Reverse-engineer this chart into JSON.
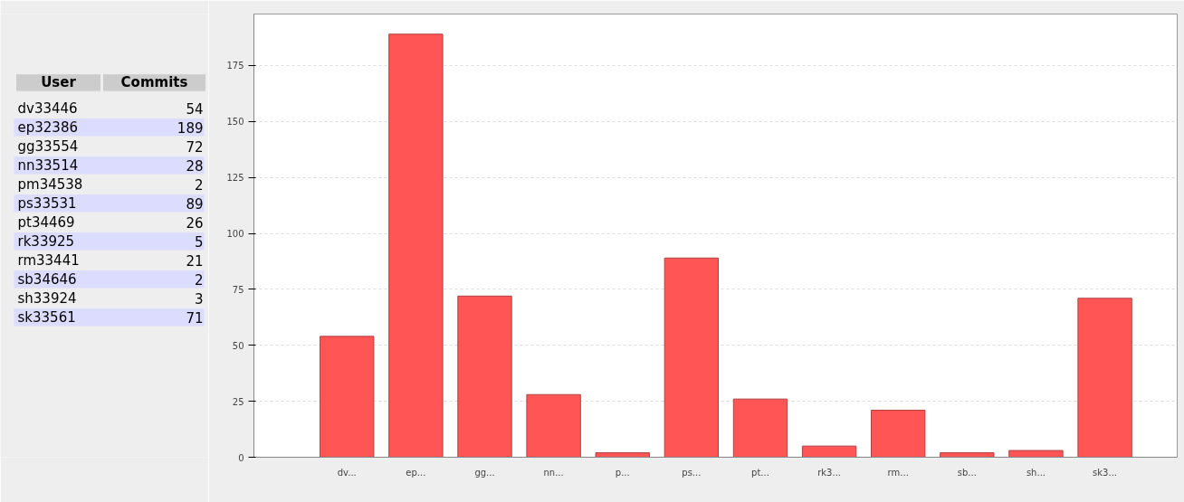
{
  "chart_data": [
    {
      "type": "other",
      "annotations": [
        "User",
        "Commits",
        "dv33446",
        "54",
        "ep32386",
        "189",
        "gg33554",
        "72",
        "nn33514",
        "28",
        "pm34538",
        "2",
        "ps33531",
        "89",
        "pt34469",
        "26",
        "rk33925",
        "5",
        "rm33441",
        "21",
        "sb34646",
        "2",
        "sh33924",
        "3",
        "sk33561",
        "71"
      ]
    },
    {
      "type": "bar",
      "categories": [
        "dv...",
        "ep...",
        "gg...",
        "nn...",
        "p...",
        "ps...",
        "pt...",
        "rk3...",
        "rm...",
        "sb...",
        "sh...",
        "sk3..."
      ],
      "values": [
        54,
        189,
        72,
        28,
        2,
        89,
        26,
        5,
        21,
        2,
        3,
        71
      ],
      "color": "#ff5555",
      "ylim": [
        0,
        198
      ],
      "yticks": [
        0,
        25,
        50,
        75,
        100,
        125,
        150,
        175
      ],
      "grid": "y"
    }
  ]
}
